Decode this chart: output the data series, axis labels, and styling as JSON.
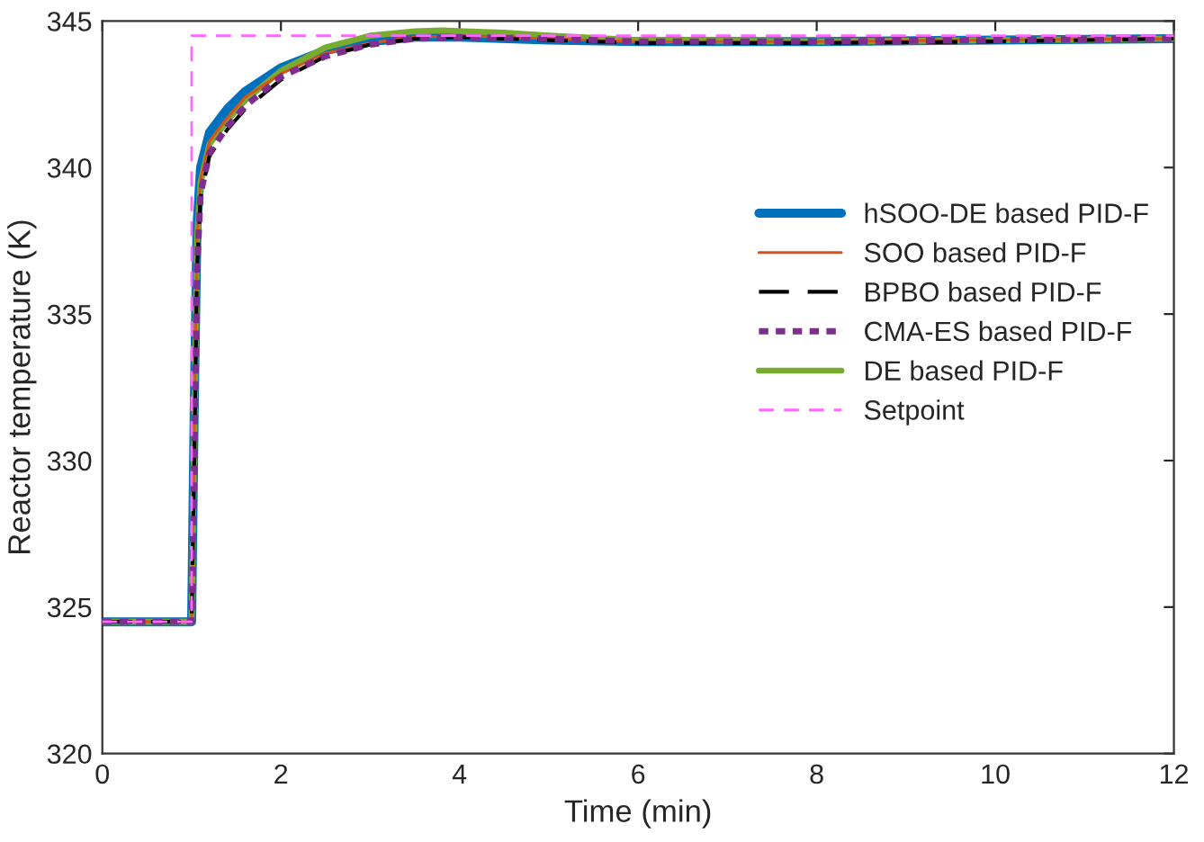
{
  "chart_data": {
    "type": "line",
    "xlabel": "Time (min)",
    "ylabel": "Reactor temperature (K)",
    "xlim": [
      0,
      12
    ],
    "ylim": [
      320,
      345
    ],
    "xticks": [
      0,
      2,
      4,
      6,
      8,
      10,
      12
    ],
    "yticks": [
      320,
      325,
      330,
      335,
      340,
      345
    ],
    "grid": false,
    "legend": "right",
    "marker": "none",
    "series": [
      {
        "name": "hSOO-DE based PID-F",
        "color": "#0072bd",
        "line_style": "solid",
        "x": [
          0,
          1,
          1.03,
          1.06,
          1.1,
          1.2,
          1.4,
          1.6,
          2,
          2.5,
          3,
          3.5,
          4,
          5,
          6,
          8,
          10,
          12
        ],
        "values": [
          324.5,
          324.5,
          332,
          338,
          340,
          341.2,
          342,
          342.6,
          343.4,
          344,
          344.3,
          344.45,
          344.45,
          344.35,
          344.3,
          344.3,
          344.35,
          344.4
        ]
      },
      {
        "name": "SOO based PID-F",
        "color": "#d95319",
        "line_style": "solid",
        "x": [
          0,
          1,
          1.03,
          1.06,
          1.1,
          1.2,
          1.4,
          1.6,
          2,
          2.5,
          3,
          3.5,
          4,
          5,
          6,
          8,
          10,
          12
        ],
        "values": [
          324.5,
          324.5,
          331,
          337.5,
          339.6,
          340.9,
          341.7,
          342.4,
          343.2,
          343.9,
          344.25,
          344.45,
          344.5,
          344.4,
          344.3,
          344.3,
          344.35,
          344.4
        ]
      },
      {
        "name": "BPBO based PID-F",
        "color": "#000000",
        "line_style": "dashed",
        "x": [
          0,
          1,
          1.03,
          1.06,
          1.1,
          1.2,
          1.4,
          1.6,
          2,
          2.5,
          3,
          3.5,
          4,
          5,
          6,
          8,
          10,
          12
        ],
        "values": [
          324.5,
          324.5,
          330,
          336.5,
          339,
          340.4,
          341.3,
          342,
          343,
          343.8,
          344.2,
          344.4,
          344.45,
          344.35,
          344.25,
          344.25,
          344.3,
          344.4
        ]
      },
      {
        "name": "CMA-ES based PID-F",
        "color": "#7e2f8e",
        "line_style": "dotted",
        "x": [
          0,
          1,
          1.03,
          1.06,
          1.1,
          1.2,
          1.4,
          1.6,
          2,
          2.5,
          3,
          3.5,
          4,
          5,
          6,
          8,
          10,
          12
        ],
        "values": [
          324.5,
          324.5,
          330,
          336.5,
          339.1,
          340.5,
          341.4,
          342.1,
          343.1,
          343.8,
          344.2,
          344.4,
          344.45,
          344.4,
          344.3,
          344.3,
          344.35,
          344.4
        ]
      },
      {
        "name": "DE based PID-F",
        "color": "#77ac30",
        "line_style": "solid",
        "x": [
          0,
          1,
          1.03,
          1.06,
          1.1,
          1.2,
          1.4,
          1.6,
          2,
          2.5,
          3,
          3.5,
          3.8,
          4.5,
          5,
          6,
          8,
          10,
          12
        ],
        "values": [
          324.5,
          324.5,
          331,
          337.5,
          339.5,
          340.8,
          341.6,
          342.3,
          343.3,
          344.1,
          344.5,
          344.65,
          344.68,
          344.6,
          344.5,
          344.35,
          344.3,
          344.35,
          344.4
        ]
      },
      {
        "name": "Setpoint",
        "color": "#ff66ff",
        "line_style": "dashed",
        "x": [
          0,
          1,
          1,
          12
        ],
        "values": [
          324.5,
          324.5,
          344.5,
          344.5
        ]
      }
    ]
  }
}
